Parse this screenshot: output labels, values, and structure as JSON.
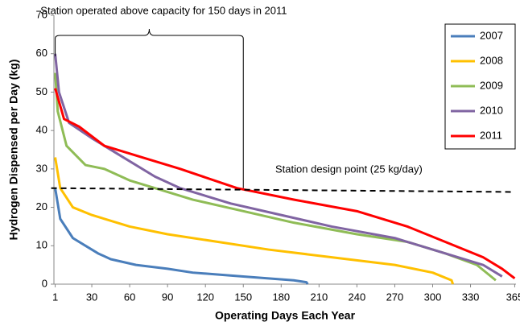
{
  "chart_data": {
    "type": "line",
    "xlabel": "Operating Days Each Year",
    "ylabel": "Hydrogen Dispensed per Day (kg)",
    "xlim": [
      0,
      366
    ],
    "xticks": [
      1,
      30,
      60,
      90,
      120,
      150,
      180,
      210,
      240,
      270,
      300,
      330,
      365
    ],
    "ylim": [
      0,
      70
    ],
    "yticks": [
      0,
      10,
      20,
      30,
      40,
      50,
      60,
      70
    ],
    "legend": "top-right",
    "series": [
      {
        "name": "2007",
        "color": "#4a7ebb",
        "x": [
          1,
          5,
          15,
          25,
          35,
          45,
          65,
          90,
          110,
          150,
          190,
          200,
          201
        ],
        "values": [
          25,
          17,
          12,
          10,
          8,
          6.5,
          5,
          4,
          3,
          2,
          1,
          0.5,
          0
        ]
      },
      {
        "name": "2008",
        "color": "#ffc000",
        "x": [
          1,
          5,
          15,
          30,
          60,
          90,
          130,
          170,
          220,
          270,
          300,
          315,
          316
        ],
        "values": [
          33,
          25,
          20,
          18,
          15,
          13,
          11,
          9,
          7,
          5,
          3,
          1,
          0
        ]
      },
      {
        "name": "2009",
        "color": "#8fbc56",
        "x": [
          1,
          3,
          10,
          25,
          40,
          60,
          80,
          110,
          150,
          190,
          240,
          280,
          310,
          335,
          350
        ],
        "values": [
          55,
          45,
          36,
          31,
          30,
          27,
          25,
          22,
          19,
          16,
          13,
          11,
          8,
          5,
          1
        ]
      },
      {
        "name": "2010",
        "color": "#8064a2",
        "x": [
          1,
          4,
          12,
          30,
          55,
          80,
          100,
          140,
          180,
          220,
          270,
          310,
          340,
          355
        ],
        "values": [
          60,
          50,
          42,
          38,
          33,
          28,
          25,
          21,
          18,
          15,
          12,
          8,
          5,
          2
        ]
      },
      {
        "name": "2011",
        "color": "#ff0000",
        "x": [
          1,
          8,
          20,
          40,
          70,
          100,
          145,
          190,
          240,
          280,
          310,
          340,
          355,
          365
        ],
        "values": [
          51,
          43,
          41,
          36,
          33,
          30,
          25,
          22,
          19,
          15,
          11,
          7,
          4,
          1.5
        ]
      }
    ],
    "annotations": [
      {
        "text": "Station operated above capacity for 150 days in 2011",
        "x": [
          1,
          150
        ]
      },
      {
        "text": "Station design point (25 kg/day)",
        "x": [
          1,
          365
        ],
        "y": [
          25,
          24
        ]
      }
    ]
  }
}
